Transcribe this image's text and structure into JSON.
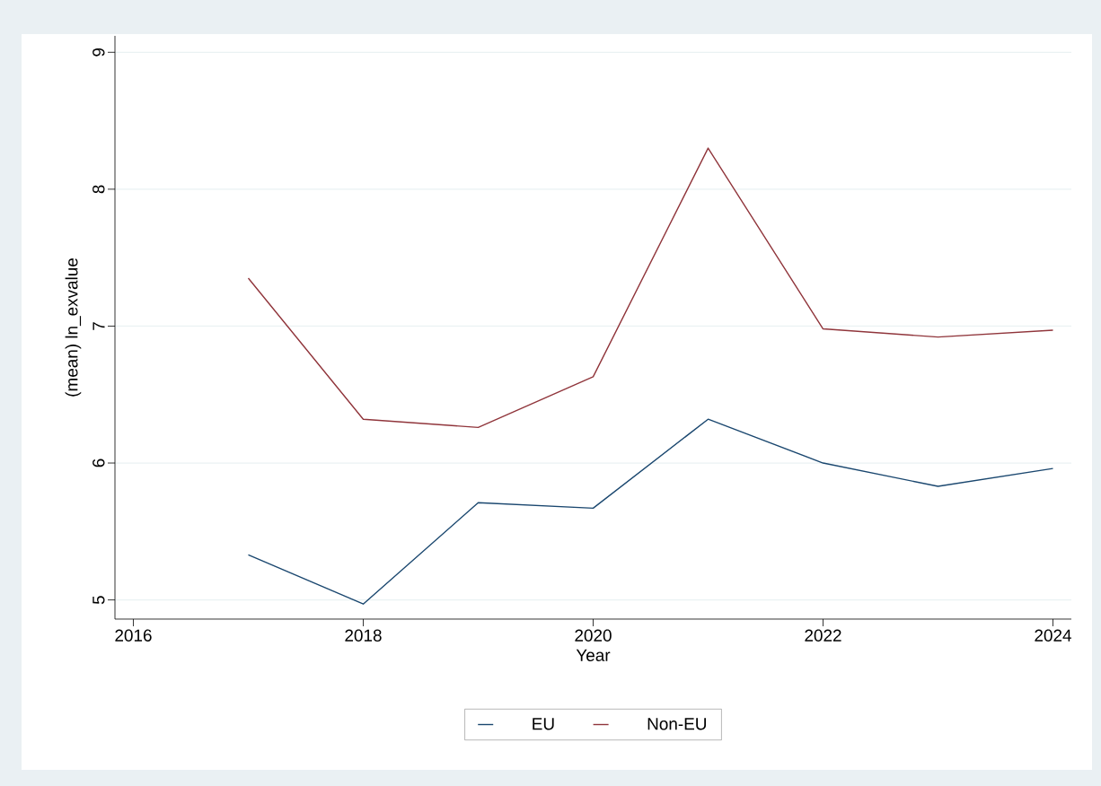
{
  "chart_data": {
    "type": "line",
    "xlabel": "Year",
    "ylabel": "(mean) ln_exvalue",
    "x": [
      2017,
      2018,
      2019,
      2020,
      2021,
      2022,
      2023,
      2024
    ],
    "series": [
      {
        "name": "EU",
        "color": "#1a476f",
        "values": [
          5.33,
          4.97,
          5.71,
          5.67,
          6.32,
          6.0,
          5.83,
          5.96
        ]
      },
      {
        "name": "Non-EU",
        "color": "#90353b",
        "values": [
          7.35,
          6.32,
          6.26,
          6.63,
          8.3,
          6.98,
          6.92,
          6.97
        ]
      }
    ],
    "xlim": [
      2015.84,
      2024.16
    ],
    "ylim": [
      4.86,
      9.12
    ],
    "xticks": [
      2016,
      2018,
      2020,
      2022,
      2024
    ],
    "yticks": [
      5,
      6,
      7,
      8,
      9
    ],
    "grid": "y",
    "legend": "bottom",
    "marker": "none",
    "line_style": "solid"
  }
}
